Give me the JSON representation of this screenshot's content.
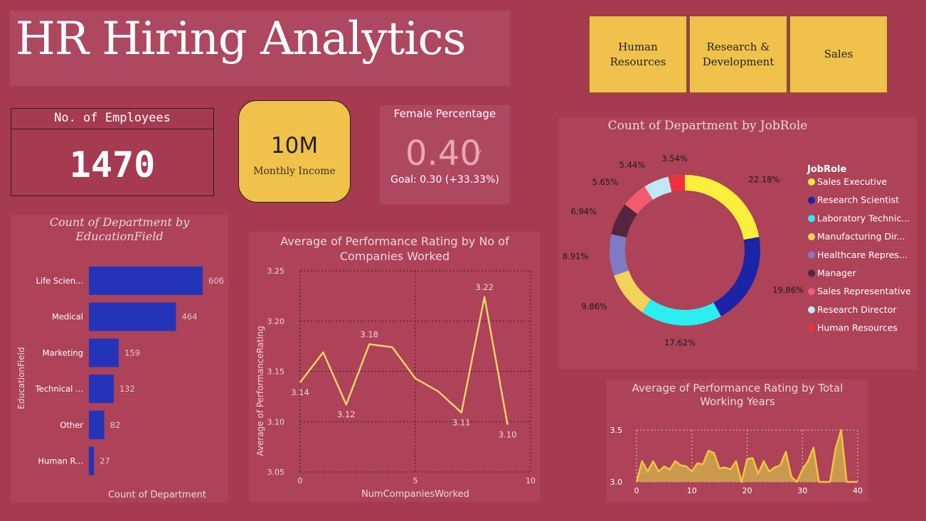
{
  "title": "HR Hiring Analytics",
  "slicers": [
    {
      "label": "Human Resources"
    },
    {
      "label": "Research & Development"
    },
    {
      "label": "Sales"
    }
  ],
  "kpis": {
    "employees_label": "No. of Employees",
    "employees_value": "1470",
    "income_value": "10M",
    "income_label": "Monthly Income",
    "female_title": "Female Percentage",
    "female_value": "0.40",
    "female_goal": "Goal: 0.30 (+33.33%)"
  },
  "colors": {
    "background": "#A63A50",
    "panel": "#AD4259",
    "accent": "#F0C24B",
    "bar": "#2434B8",
    "line": "#F2D16B"
  },
  "chart_data": [
    {
      "id": "education",
      "type": "bar",
      "title": "Count of Department by EducationField",
      "xlabel": "Count of Department",
      "ylabel": "EducationField",
      "categories": [
        "Life Scien...",
        "Medical",
        "Marketing",
        "Technical ...",
        "Other",
        "Human R..."
      ],
      "values": [
        606,
        464,
        159,
        132,
        82,
        27
      ],
      "data_labels": [
        "606",
        "464",
        "159",
        "132",
        "82",
        "27"
      ],
      "xlim": [
        0,
        606
      ]
    },
    {
      "id": "companies",
      "type": "line",
      "title": "Average of Performance Rating by No of Companies Worked",
      "xlabel": "NumCompaniesWorked",
      "ylabel": "Average of PerformanceRating",
      "x": [
        0,
        1,
        2,
        3,
        4,
        5,
        6,
        7,
        8,
        9
      ],
      "y": [
        3.139,
        3.169,
        3.117,
        3.177,
        3.174,
        3.143,
        3.13,
        3.109,
        3.224,
        3.097
      ],
      "xlim": [
        0,
        10
      ],
      "ylim": [
        3.05,
        3.25
      ],
      "xticks": [
        "0",
        "5",
        "10"
      ],
      "yticks": [
        "3.05",
        "3.10",
        "3.15",
        "3.20",
        "3.25"
      ],
      "data_labels": [
        {
          "x": 0,
          "y": 3.139,
          "text": "3.14",
          "pos": "below"
        },
        {
          "x": 2,
          "y": 3.117,
          "text": "3.12",
          "pos": "below"
        },
        {
          "x": 3,
          "y": 3.177,
          "text": "3.18",
          "pos": "above"
        },
        {
          "x": 7,
          "y": 3.109,
          "text": "3.11",
          "pos": "below"
        },
        {
          "x": 8,
          "y": 3.224,
          "text": "3.22",
          "pos": "above"
        },
        {
          "x": 9,
          "y": 3.097,
          "text": "3.10",
          "pos": "below"
        }
      ],
      "grid": true
    },
    {
      "id": "jobrole",
      "type": "pie",
      "title": "Count of Department by JobRole",
      "legend_title": "JobRole",
      "legend": "right",
      "series": [
        {
          "name": "Sales Executive",
          "value": 22.18,
          "label": "22.18%",
          "color": "#FAF03C"
        },
        {
          "name": "Research Scientist",
          "value": 19.86,
          "label": "19.86%",
          "color": "#1A24A6"
        },
        {
          "name": "Laboratory Technic...",
          "value": 17.62,
          "label": "17.62%",
          "color": "#2BEEF1"
        },
        {
          "name": "Manufacturing Dir...",
          "value": 9.86,
          "label": "9.86%",
          "color": "#F3D25B"
        },
        {
          "name": "Healthcare Repres...",
          "value": 8.91,
          "label": "8.91%",
          "color": "#7F7AC4"
        },
        {
          "name": "Manager",
          "value": 6.94,
          "label": "6.94%",
          "color": "#55243F"
        },
        {
          "name": "Sales Representative",
          "value": 5.65,
          "label": "5.65%",
          "color": "#F45B6E"
        },
        {
          "name": "Research Director",
          "value": 5.44,
          "label": "5.44%",
          "color": "#BFE7F6"
        },
        {
          "name": "Human Resources",
          "value": 3.54,
          "label": "3.54%",
          "color": "#F1303E"
        }
      ]
    },
    {
      "id": "workyears",
      "type": "area",
      "title": "Average of Performance Rating by Total Working Years",
      "x": [
        0,
        1,
        2,
        3,
        4,
        5,
        6,
        7,
        8,
        9,
        10,
        11,
        12,
        13,
        14,
        15,
        16,
        17,
        18,
        19,
        20,
        21,
        22,
        23,
        24,
        25,
        26,
        27,
        28,
        29,
        30,
        31,
        32,
        33,
        34,
        35,
        36,
        37,
        38,
        39,
        40
      ],
      "y": [
        3.0,
        3.2,
        3.1,
        3.2,
        3.1,
        3.15,
        3.12,
        3.2,
        3.16,
        3.15,
        3.1,
        3.18,
        3.17,
        3.3,
        3.28,
        3.13,
        3.14,
        3.12,
        3.2,
        3.0,
        3.22,
        3.23,
        3.08,
        3.2,
        3.1,
        3.14,
        3.16,
        3.29,
        3.05,
        3.0,
        3.12,
        3.2,
        3.33,
        3.0,
        3.0,
        3.0,
        3.32,
        3.5,
        3.0,
        3.0,
        3.0
      ],
      "xlim": [
        0,
        40
      ],
      "ylim": [
        3.0,
        3.5
      ],
      "xticks": [
        "0",
        "10",
        "20",
        "30",
        "40"
      ],
      "yticks": [
        "3.0",
        "3.5"
      ],
      "grid": true
    }
  ]
}
